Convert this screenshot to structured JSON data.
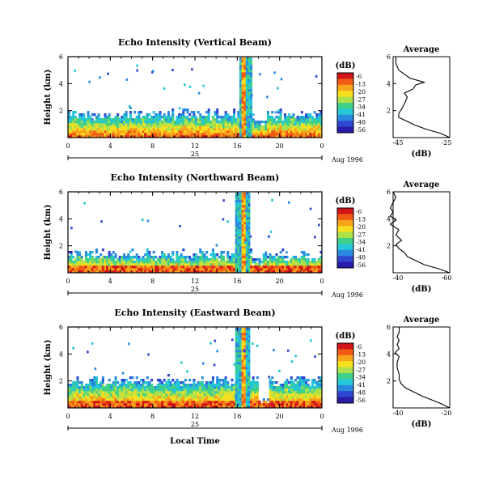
{
  "figure": {
    "bottom_label": "Local Time",
    "day_label": "25",
    "month_label": "Aug 1996",
    "units_label": "(dB)"
  },
  "chart_data": [
    {
      "type": "heatmap",
      "title": "Echo Intensity (Vertical Beam)",
      "xlabel": "",
      "ylabel": "Height (km)",
      "xlim": [
        0,
        24
      ],
      "ylim": [
        0,
        6
      ],
      "x_ticks": [
        "0",
        "4",
        "8",
        "12",
        "16",
        "20",
        "0"
      ],
      "y_ticks": [
        "2",
        "4",
        "6"
      ],
      "colorbar": {
        "label": "(dB)",
        "ticks": [
          "-6",
          "-13",
          "-20",
          "-27",
          "-34",
          "-41",
          "-48",
          "-56"
        ]
      },
      "colormap": [
        "#d0141a",
        "#f05a14",
        "#f7a21b",
        "#f5e020",
        "#aee04a",
        "#3fd08a",
        "#25c6d6",
        "#2a8ae0",
        "#2f47d0",
        "#2a1aa8"
      ],
      "layer_top_km": 1.9,
      "plume": {
        "x_start": 16.2,
        "x_end": 17.4,
        "top_km": 6.0
      },
      "gap": {
        "x_start": 17.6,
        "x_end": 18.8,
        "top_km": 1.3
      },
      "profile": {
        "title": "Average",
        "xlabel": "(dB)",
        "x_ticks": [
          "-45",
          "-25"
        ],
        "y_ticks": [
          "2",
          "4",
          "6"
        ],
        "xlim": [
          -45,
          -25
        ],
        "ylim": [
          0,
          6
        ],
        "height_km": [
          0.0,
          0.3,
          0.6,
          0.9,
          1.2,
          1.5,
          1.8,
          2.1,
          2.5,
          3.0,
          3.3,
          3.6,
          3.9,
          4.1,
          4.4,
          4.7,
          5.0,
          5.5,
          6.0
        ],
        "db": [
          -25,
          -28,
          -33,
          -37,
          -40,
          -43,
          -43,
          -42,
          -41,
          -40,
          -41,
          -38,
          -37,
          -34,
          -39,
          -41,
          -43,
          -44,
          -44
        ]
      }
    },
    {
      "type": "heatmap",
      "title": "Echo Intensity (Northward Beam)",
      "xlabel": "",
      "ylabel": "Height (km)",
      "xlim": [
        0,
        24
      ],
      "ylim": [
        0,
        6
      ],
      "x_ticks": [
        "0",
        "4",
        "8",
        "12",
        "16",
        "20",
        "0"
      ],
      "y_ticks": [
        "2",
        "4",
        "6"
      ],
      "colorbar": {
        "label": "(dB)",
        "ticks": [
          "-6",
          "-13",
          "-20",
          "-27",
          "-34",
          "-41",
          "-48",
          "-56"
        ]
      },
      "colormap": [
        "#d0141a",
        "#f05a14",
        "#f7a21b",
        "#f5e020",
        "#aee04a",
        "#3fd08a",
        "#25c6d6",
        "#2a8ae0",
        "#2f47d0",
        "#2a1aa8"
      ],
      "layer_top_km": 1.5,
      "plume": {
        "x_start": 15.8,
        "x_end": 17.2,
        "top_km": 6.0
      },
      "gap": {
        "x_start": 17.4,
        "x_end": 18.4,
        "top_km": 1.0
      },
      "profile": {
        "title": "Average",
        "xlabel": "(dB)",
        "x_ticks": [
          "-40",
          "-60"
        ],
        "y_ticks": [
          "2",
          "4",
          "6"
        ],
        "xlim": [
          -40,
          -60
        ],
        "ylim": [
          0,
          6
        ],
        "height_km": [
          0.0,
          0.3,
          0.6,
          0.9,
          1.2,
          1.5,
          1.8,
          2.1,
          2.4,
          2.8,
          3.2,
          3.6,
          3.9,
          4.2,
          4.5,
          4.8,
          5.2,
          5.6,
          6.0
        ],
        "db": [
          -60,
          -56,
          -51,
          -48,
          -45,
          -44,
          -42,
          -41,
          -43,
          -41,
          -42,
          -39,
          -41,
          -39,
          -40,
          -39,
          -40,
          -41,
          -40
        ]
      }
    },
    {
      "type": "heatmap",
      "title": "Echo Intensity (Eastward Beam)",
      "xlabel": "Local Time",
      "ylabel": "Height (km)",
      "xlim": [
        0,
        24
      ],
      "ylim": [
        0,
        6
      ],
      "x_ticks": [
        "0",
        "4",
        "8",
        "12",
        "16",
        "20",
        "0"
      ],
      "y_ticks": [
        "2",
        "4",
        "6"
      ],
      "colorbar": {
        "label": "(dB)",
        "ticks": [
          "-6",
          "-13",
          "-20",
          "-27",
          "-34",
          "-41",
          "-48",
          "-56"
        ]
      },
      "colormap": [
        "#d0141a",
        "#f05a14",
        "#f7a21b",
        "#f5e020",
        "#aee04a",
        "#3fd08a",
        "#25c6d6",
        "#2a8ae0",
        "#2f47d0",
        "#2a1aa8"
      ],
      "layer_top_km": 2.2,
      "plume": {
        "x_start": 15.8,
        "x_end": 17.2,
        "top_km": 6.0
      },
      "gap": {
        "x_start": 18.0,
        "x_end": 19.0,
        "top_km": 0.8
      },
      "profile": {
        "title": "Average",
        "xlabel": "(dB)",
        "x_ticks": [
          "-40",
          "-20"
        ],
        "y_ticks": [
          "2",
          "4",
          "6"
        ],
        "xlim": [
          -46,
          -18
        ],
        "ylim": [
          0,
          6
        ],
        "height_km": [
          0.0,
          0.3,
          0.6,
          0.9,
          1.2,
          1.5,
          1.8,
          2.1,
          2.5,
          3.0,
          3.4,
          3.8,
          4.1,
          4.4,
          4.7,
          5.0,
          5.3,
          5.6,
          6.0
        ],
        "db": [
          -18,
          -22,
          -27,
          -32,
          -36,
          -40,
          -42,
          -43,
          -43,
          -44,
          -44,
          -43,
          -45,
          -43,
          -44,
          -43,
          -44,
          -43,
          -43
        ]
      }
    }
  ]
}
